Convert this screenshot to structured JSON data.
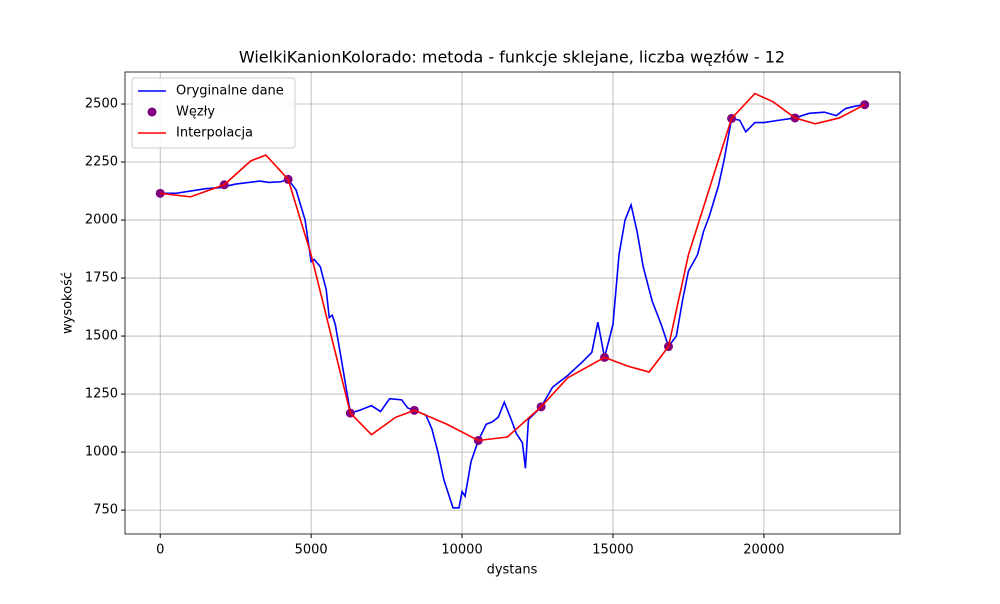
{
  "chart_data": {
    "type": "line",
    "title": "WielkiKanionKolorado: metoda - funkcje sklejane, liczba węzłów - 12",
    "x_label": "dystans",
    "y_label": "wysokość",
    "xlim": [
      -1167,
      24510
    ],
    "ylim": [
      647,
      2638
    ],
    "xticks": [
      0,
      5000,
      10000,
      15000,
      20000
    ],
    "yticks": [
      750,
      1000,
      1250,
      1500,
      1750,
      2000,
      2250,
      2500
    ],
    "grid": true,
    "legend": "upper left",
    "series": [
      {
        "name": "Oryginalne dane",
        "kind": "line",
        "color": "#0000ff",
        "x": [
          0,
          500,
          1000,
          1500,
          2000,
          2500,
          3000,
          3300,
          3600,
          4000,
          4240,
          4500,
          4800,
          5000,
          5100,
          5300,
          5500,
          5600,
          5700,
          5800,
          6000,
          6300,
          6600,
          7000,
          7300,
          7600,
          8000,
          8200,
          8420,
          8800,
          9000,
          9200,
          9400,
          9700,
          9900,
          10000,
          10100,
          10300,
          10540,
          10800,
          11000,
          11200,
          11400,
          11600,
          11800,
          12000,
          12100,
          12200,
          12620,
          13000,
          13500,
          14000,
          14300,
          14500,
          14720,
          15000,
          15200,
          15400,
          15600,
          15800,
          16000,
          16300,
          16600,
          16840,
          17100,
          17300,
          17500,
          17800,
          18000,
          18200,
          18500,
          18700,
          18930,
          19200,
          19400,
          19700,
          20000,
          20500,
          21030,
          21500,
          22000,
          22400,
          22700,
          23000,
          23340
        ],
        "values": [
          2115,
          2115,
          2125,
          2135,
          2140,
          2155,
          2163,
          2168,
          2162,
          2165,
          2175,
          2130,
          2000,
          1820,
          1830,
          1800,
          1700,
          1580,
          1590,
          1550,
          1400,
          1168,
          1180,
          1200,
          1175,
          1230,
          1225,
          1190,
          1180,
          1160,
          1100,
          1000,
          880,
          760,
          760,
          830,
          810,
          960,
          1050,
          1120,
          1130,
          1150,
          1215,
          1150,
          1080,
          1040,
          930,
          1140,
          1195,
          1280,
          1330,
          1390,
          1430,
          1560,
          1408,
          1550,
          1850,
          2000,
          2065,
          1950,
          1800,
          1650,
          1550,
          1455,
          1500,
          1650,
          1780,
          1850,
          1950,
          2020,
          2150,
          2270,
          2438,
          2430,
          2380,
          2420,
          2420,
          2430,
          2440,
          2460,
          2465,
          2450,
          2480,
          2490,
          2497
        ]
      },
      {
        "name": "Węzły",
        "kind": "scatter",
        "color": "#800080",
        "x": [
          0,
          2120,
          4240,
          6300,
          8420,
          10540,
          12620,
          14720,
          16840,
          18930,
          21030,
          23340
        ],
        "values": [
          2115,
          2152,
          2175,
          1168,
          1180,
          1050,
          1195,
          1408,
          1455,
          2438,
          2440,
          2497
        ]
      },
      {
        "name": "Interpolacja",
        "kind": "line",
        "color": "#ff0000",
        "x": [
          0,
          1000,
          2120,
          3000,
          3500,
          4240,
          5000,
          6300,
          7000,
          7800,
          8420,
          9500,
          10540,
          11500,
          12620,
          13500,
          14720,
          15500,
          16200,
          16840,
          17500,
          18930,
          19700,
          20300,
          21030,
          21700,
          22500,
          23340
        ],
        "values": [
          2115,
          2100,
          2152,
          2255,
          2280,
          2175,
          1850,
          1168,
          1075,
          1150,
          1180,
          1120,
          1050,
          1065,
          1195,
          1320,
          1408,
          1370,
          1345,
          1455,
          1850,
          2438,
          2545,
          2510,
          2440,
          2415,
          2440,
          2497
        ]
      }
    ]
  }
}
